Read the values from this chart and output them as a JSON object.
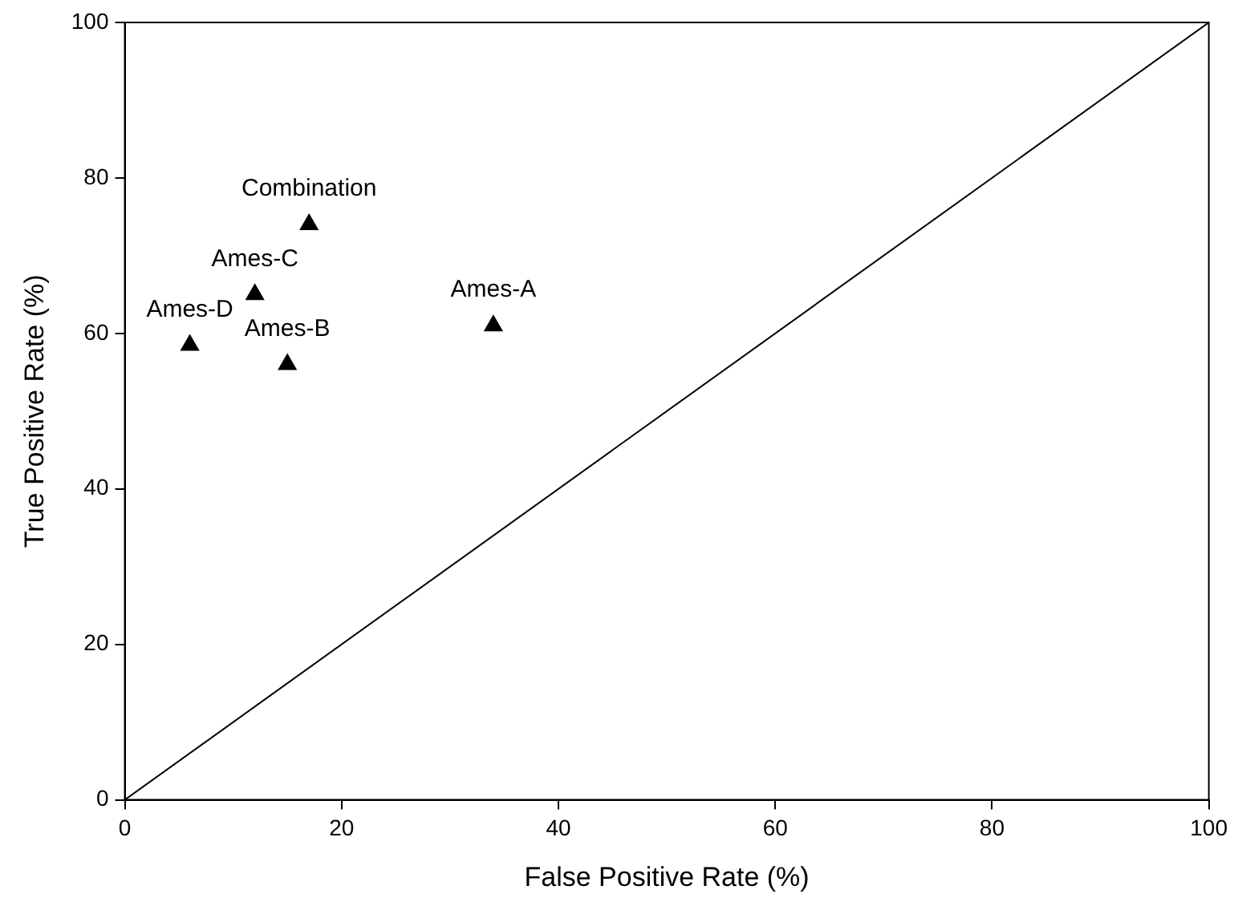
{
  "chart_data": {
    "type": "scatter",
    "xlabel": "False Positive Rate (%)",
    "ylabel": "True Positive Rate (%)",
    "xlim": [
      0,
      100
    ],
    "xticks": [
      0,
      20,
      40,
      60,
      80,
      100
    ],
    "ylim": [
      0,
      100
    ],
    "yticks": [
      0,
      20,
      40,
      60,
      80,
      100
    ],
    "grid": false,
    "legend": false,
    "marker": "triangle",
    "series": [
      {
        "type": "scatter",
        "color": "#000000",
        "x": [
          17,
          12,
          34,
          6,
          15
        ],
        "values": [
          74,
          65,
          61,
          58.5,
          56
        ]
      },
      {
        "type": "line",
        "color": "#000000",
        "x": [
          0,
          100
        ],
        "values": [
          0,
          100
        ],
        "marker": "none",
        "line_style": "solid"
      }
    ],
    "annotations": [
      {
        "text": "Combination",
        "x": 17,
        "y": 74
      },
      {
        "text": "Ames-C",
        "x": 12,
        "y": 65
      },
      {
        "text": "Ames-A",
        "x": 34,
        "y": 61
      },
      {
        "text": "Ames-D",
        "x": 6,
        "y": 58.5
      },
      {
        "text": "Ames-B",
        "x": 15,
        "y": 56
      }
    ]
  }
}
